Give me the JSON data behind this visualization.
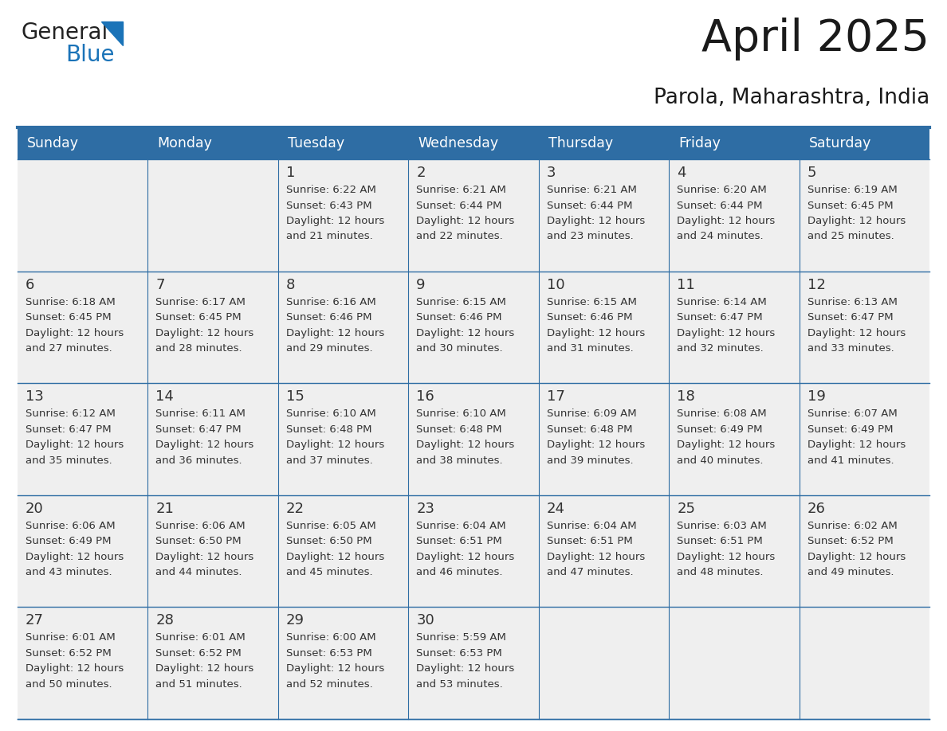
{
  "title": "April 2025",
  "subtitle": "Parola, Maharashtra, India",
  "header_bg_color": "#2E6DA4",
  "header_text_color": "#FFFFFF",
  "cell_bg_color": "#EFEFEF",
  "border_color": "#2E6DA4",
  "text_color": "#333333",
  "days_of_week": [
    "Sunday",
    "Monday",
    "Tuesday",
    "Wednesday",
    "Thursday",
    "Friday",
    "Saturday"
  ],
  "weeks": [
    [
      {
        "day": "",
        "sunrise": "",
        "sunset": "",
        "daylight": ""
      },
      {
        "day": "",
        "sunrise": "",
        "sunset": "",
        "daylight": ""
      },
      {
        "day": "1",
        "sunrise": "6:22 AM",
        "sunset": "6:43 PM",
        "daylight": "12 hours and 21 minutes."
      },
      {
        "day": "2",
        "sunrise": "6:21 AM",
        "sunset": "6:44 PM",
        "daylight": "12 hours and 22 minutes."
      },
      {
        "day": "3",
        "sunrise": "6:21 AM",
        "sunset": "6:44 PM",
        "daylight": "12 hours and 23 minutes."
      },
      {
        "day": "4",
        "sunrise": "6:20 AM",
        "sunset": "6:44 PM",
        "daylight": "12 hours and 24 minutes."
      },
      {
        "day": "5",
        "sunrise": "6:19 AM",
        "sunset": "6:45 PM",
        "daylight": "12 hours and 25 minutes."
      }
    ],
    [
      {
        "day": "6",
        "sunrise": "6:18 AM",
        "sunset": "6:45 PM",
        "daylight": "12 hours and 27 minutes."
      },
      {
        "day": "7",
        "sunrise": "6:17 AM",
        "sunset": "6:45 PM",
        "daylight": "12 hours and 28 minutes."
      },
      {
        "day": "8",
        "sunrise": "6:16 AM",
        "sunset": "6:46 PM",
        "daylight": "12 hours and 29 minutes."
      },
      {
        "day": "9",
        "sunrise": "6:15 AM",
        "sunset": "6:46 PM",
        "daylight": "12 hours and 30 minutes."
      },
      {
        "day": "10",
        "sunrise": "6:15 AM",
        "sunset": "6:46 PM",
        "daylight": "12 hours and 31 minutes."
      },
      {
        "day": "11",
        "sunrise": "6:14 AM",
        "sunset": "6:47 PM",
        "daylight": "12 hours and 32 minutes."
      },
      {
        "day": "12",
        "sunrise": "6:13 AM",
        "sunset": "6:47 PM",
        "daylight": "12 hours and 33 minutes."
      }
    ],
    [
      {
        "day": "13",
        "sunrise": "6:12 AM",
        "sunset": "6:47 PM",
        "daylight": "12 hours and 35 minutes."
      },
      {
        "day": "14",
        "sunrise": "6:11 AM",
        "sunset": "6:47 PM",
        "daylight": "12 hours and 36 minutes."
      },
      {
        "day": "15",
        "sunrise": "6:10 AM",
        "sunset": "6:48 PM",
        "daylight": "12 hours and 37 minutes."
      },
      {
        "day": "16",
        "sunrise": "6:10 AM",
        "sunset": "6:48 PM",
        "daylight": "12 hours and 38 minutes."
      },
      {
        "day": "17",
        "sunrise": "6:09 AM",
        "sunset": "6:48 PM",
        "daylight": "12 hours and 39 minutes."
      },
      {
        "day": "18",
        "sunrise": "6:08 AM",
        "sunset": "6:49 PM",
        "daylight": "12 hours and 40 minutes."
      },
      {
        "day": "19",
        "sunrise": "6:07 AM",
        "sunset": "6:49 PM",
        "daylight": "12 hours and 41 minutes."
      }
    ],
    [
      {
        "day": "20",
        "sunrise": "6:06 AM",
        "sunset": "6:49 PM",
        "daylight": "12 hours and 43 minutes."
      },
      {
        "day": "21",
        "sunrise": "6:06 AM",
        "sunset": "6:50 PM",
        "daylight": "12 hours and 44 minutes."
      },
      {
        "day": "22",
        "sunrise": "6:05 AM",
        "sunset": "6:50 PM",
        "daylight": "12 hours and 45 minutes."
      },
      {
        "day": "23",
        "sunrise": "6:04 AM",
        "sunset": "6:51 PM",
        "daylight": "12 hours and 46 minutes."
      },
      {
        "day": "24",
        "sunrise": "6:04 AM",
        "sunset": "6:51 PM",
        "daylight": "12 hours and 47 minutes."
      },
      {
        "day": "25",
        "sunrise": "6:03 AM",
        "sunset": "6:51 PM",
        "daylight": "12 hours and 48 minutes."
      },
      {
        "day": "26",
        "sunrise": "6:02 AM",
        "sunset": "6:52 PM",
        "daylight": "12 hours and 49 minutes."
      }
    ],
    [
      {
        "day": "27",
        "sunrise": "6:01 AM",
        "sunset": "6:52 PM",
        "daylight": "12 hours and 50 minutes."
      },
      {
        "day": "28",
        "sunrise": "6:01 AM",
        "sunset": "6:52 PM",
        "daylight": "12 hours and 51 minutes."
      },
      {
        "day": "29",
        "sunrise": "6:00 AM",
        "sunset": "6:53 PM",
        "daylight": "12 hours and 52 minutes."
      },
      {
        "day": "30",
        "sunrise": "5:59 AM",
        "sunset": "6:53 PM",
        "daylight": "12 hours and 53 minutes."
      },
      {
        "day": "",
        "sunrise": "",
        "sunset": "",
        "daylight": ""
      },
      {
        "day": "",
        "sunrise": "",
        "sunset": "",
        "daylight": ""
      },
      {
        "day": "",
        "sunrise": "",
        "sunset": "",
        "daylight": ""
      }
    ]
  ],
  "logo_color1": "#222222",
  "logo_color2": "#1A73B8",
  "logo_triangle_color": "#1A73B8",
  "title_fontsize": 40,
  "subtitle_fontsize": 19,
  "header_fontsize": 12.5,
  "day_num_fontsize": 13,
  "cell_text_fontsize": 9.5
}
